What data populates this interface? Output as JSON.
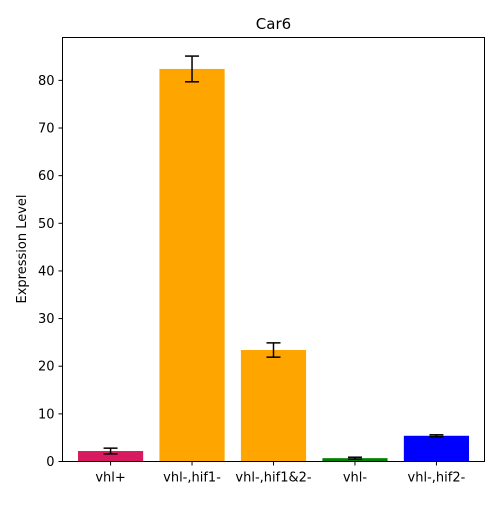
{
  "chart_data": {
    "type": "bar",
    "title": "Car6",
    "xlabel": "",
    "ylabel": "Expression Level",
    "categories": [
      "vhl+",
      "vhl-,hif1-",
      "vhl-,hif1&2-",
      "vhl-",
      "vhl-,hif2-"
    ],
    "values": [
      2.2,
      82.4,
      23.4,
      0.7,
      5.4
    ],
    "errors": [
      0.6,
      2.7,
      1.5,
      0.2,
      0.2
    ],
    "colors": [
      "#d81b60",
      "#ffa500",
      "#ffa500",
      "#008000",
      "#0000ff"
    ],
    "ylim": [
      0,
      89
    ],
    "yticks": [
      0,
      10,
      20,
      30,
      40,
      50,
      60,
      70,
      80
    ],
    "grid": false,
    "legend": "none"
  }
}
